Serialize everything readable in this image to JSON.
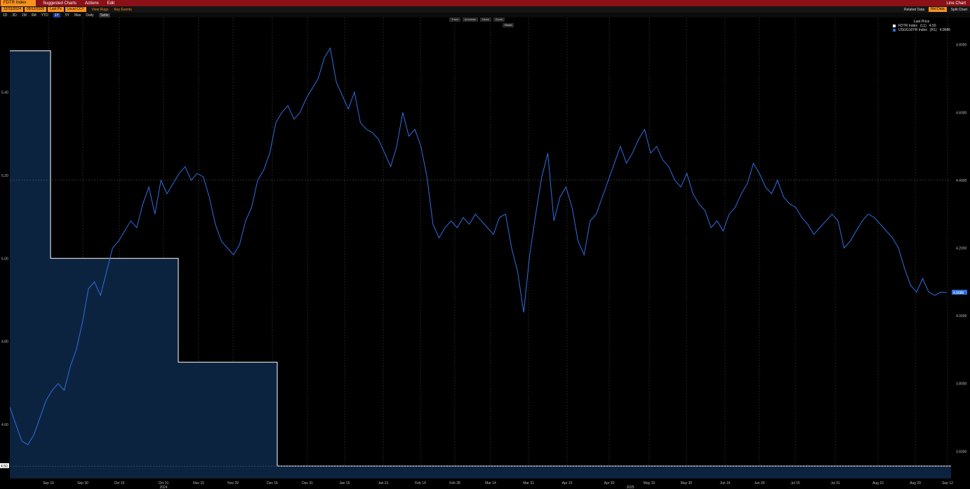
{
  "topbar": {
    "ticker": "FDTR Index",
    "menu_suggested": "Suggested Charts",
    "menu_actions": "Actions",
    "menu_edit": "Edit",
    "title": "Line Chart"
  },
  "bar2": {
    "field1": "12/31/2024",
    "field2": "09/12/2025",
    "field3": "Last Px",
    "field4": "Local CCY",
    "flag1": "View Rugs",
    "flag2": "Key Events",
    "related_label": "Related Data",
    "related_value": "Rel Data",
    "split_chart": "Split Chart"
  },
  "bar3": {
    "periods": [
      "1D",
      "3D",
      "1M",
      "6M",
      "YTD",
      "1Y",
      "5Y",
      "Max",
      "Daily"
    ],
    "selected": "1Y",
    "table": "Table"
  },
  "tools": {
    "items": [
      "Track",
      "Annotate",
      "News",
      "Zoom"
    ],
    "reset": "Reset"
  },
  "legend": {
    "header": "Last Price",
    "items": [
      {
        "name": "FDTR Index",
        "axis": "(L1)",
        "value": "4.50",
        "color": "#ffffff"
      },
      {
        "name": "USGG10YR Index",
        "axis": "(R1)",
        "value": "4.0686",
        "color": "#2f6fe0"
      }
    ]
  },
  "colors": {
    "line_series": "#2f6fe0",
    "area_fill": "#0c2340",
    "step_line": "#ffffff"
  },
  "chart_data": {
    "type": "line",
    "left_axis": {
      "ticks": [
        "5.40",
        "5.20",
        "5.00",
        "4.80",
        "4.60"
      ],
      "range": [
        4.47,
        5.58
      ]
    },
    "right_axis": {
      "ticks": [
        "4.8000",
        "4.6000",
        "4.4000",
        "4.2000",
        "4.0000",
        "3.8000",
        "3.6000"
      ],
      "range": [
        3.52,
        4.88
      ]
    },
    "x_ticks": [
      "Sep 16",
      "Sep 30",
      "Oct 15",
      "Oct 31",
      "Nov 15",
      "Nov 29",
      "Dec 16",
      "Dec 31",
      "Jan 15",
      "Jan 31",
      "Feb 14",
      "Feb 28",
      "Mar 14",
      "Mar 31",
      "Apr 15",
      "Apr 30",
      "May 15",
      "May 30",
      "Jun 16",
      "Jun 30",
      "Jul 15",
      "Jul 31",
      "Aug 15",
      "Aug 29",
      "Sep 12"
    ],
    "year_labels": [
      "2024",
      "2025"
    ],
    "last_left_label": "4.50",
    "last_right_label": "4.0686",
    "series": [
      {
        "name": "FDTR Index",
        "step_values": [
          {
            "x": "Sep 10",
            "y": 5.5
          },
          {
            "x": "Sep 18",
            "y": 5.0
          },
          {
            "x": "Nov 7",
            "y": 4.75
          },
          {
            "x": "Dec 18",
            "y": 4.5
          },
          {
            "x": "Sep 12",
            "y": 4.5
          }
        ]
      },
      {
        "name": "USGG10YR Index",
        "values": [
          3.73,
          3.68,
          3.63,
          3.62,
          3.65,
          3.7,
          3.75,
          3.78,
          3.8,
          3.78,
          3.85,
          3.9,
          3.98,
          4.08,
          4.1,
          4.06,
          4.13,
          4.2,
          4.22,
          4.25,
          4.28,
          4.26,
          4.33,
          4.38,
          4.3,
          4.4,
          4.36,
          4.39,
          4.42,
          4.44,
          4.4,
          4.42,
          4.41,
          4.35,
          4.27,
          4.22,
          4.2,
          4.18,
          4.21,
          4.28,
          4.32,
          4.4,
          4.43,
          4.48,
          4.57,
          4.6,
          4.62,
          4.58,
          4.6,
          4.64,
          4.67,
          4.7,
          4.76,
          4.79,
          4.69,
          4.65,
          4.61,
          4.66,
          4.57,
          4.55,
          4.54,
          4.52,
          4.48,
          4.44,
          4.5,
          4.6,
          4.53,
          4.55,
          4.5,
          4.41,
          4.27,
          4.23,
          4.26,
          4.28,
          4.26,
          4.29,
          4.27,
          4.3,
          4.28,
          4.26,
          4.24,
          4.29,
          4.3,
          4.2,
          4.13,
          4.01,
          4.18,
          4.3,
          4.41,
          4.48,
          4.28,
          4.35,
          4.38,
          4.32,
          4.22,
          4.18,
          4.28,
          4.3,
          4.35,
          4.4,
          4.45,
          4.5,
          4.45,
          4.48,
          4.52,
          4.55,
          4.48,
          4.5,
          4.46,
          4.44,
          4.4,
          4.38,
          4.42,
          4.36,
          4.33,
          4.31,
          4.26,
          4.28,
          4.25,
          4.3,
          4.32,
          4.36,
          4.39,
          4.45,
          4.42,
          4.38,
          4.36,
          4.4,
          4.35,
          4.33,
          4.32,
          4.29,
          4.27,
          4.24,
          4.26,
          4.28,
          4.3,
          4.28,
          4.2,
          4.22,
          4.25,
          4.28,
          4.3,
          4.29,
          4.27,
          4.25,
          4.23,
          4.2,
          4.14,
          4.09,
          4.07,
          4.11,
          4.07,
          4.06,
          4.07,
          4.0686
        ]
      }
    ]
  }
}
